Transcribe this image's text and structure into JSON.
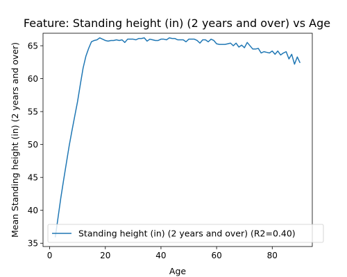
{
  "chart_data": {
    "type": "line",
    "title": "Feature: Standing height (in) (2 years and over) vs Age",
    "xlabel": "Age",
    "ylabel": "Mean Standing height (in) (2 years and over)",
    "xlim": [
      -2.4,
      94.4
    ],
    "ylim": [
      34.5,
      66.9
    ],
    "xticks": [
      0,
      20,
      40,
      60,
      80
    ],
    "yticks": [
      35,
      40,
      45,
      50,
      55,
      60,
      65
    ],
    "xtick_labels": [
      "0",
      "20",
      "40",
      "60",
      "80"
    ],
    "ytick_labels": [
      "35",
      "40",
      "45",
      "50",
      "55",
      "60",
      "65"
    ],
    "grid": false,
    "legend_position": "lower-left",
    "series": [
      {
        "name": "Standing height (in) (2 years and over) (R2=0.40)",
        "color": "#1f77b4",
        "x": [
          2,
          3,
          4,
          5,
          6,
          7,
          8,
          9,
          10,
          11,
          12,
          13,
          14,
          15,
          16,
          17,
          18,
          19,
          20,
          21,
          22,
          23,
          24,
          25,
          26,
          27,
          28,
          29,
          30,
          31,
          32,
          33,
          34,
          35,
          36,
          37,
          38,
          39,
          40,
          41,
          42,
          43,
          44,
          45,
          46,
          47,
          48,
          49,
          50,
          51,
          52,
          53,
          54,
          55,
          56,
          57,
          58,
          59,
          60,
          61,
          62,
          63,
          64,
          65,
          66,
          67,
          68,
          69,
          70,
          71,
          72,
          73,
          74,
          75,
          76,
          77,
          78,
          79,
          80,
          81,
          82,
          83,
          84,
          85,
          86,
          87,
          88,
          89,
          90
        ],
        "values": [
          35.9,
          38.9,
          41.9,
          44.6,
          47.2,
          49.8,
          52.1,
          54.3,
          56.5,
          59.1,
          61.6,
          63.4,
          64.6,
          65.6,
          65.8,
          65.9,
          66.2,
          66.0,
          65.8,
          65.7,
          65.8,
          65.8,
          65.9,
          65.8,
          65.9,
          65.5,
          66.0,
          66.0,
          66.0,
          65.9,
          66.1,
          66.1,
          66.2,
          65.7,
          66.0,
          65.9,
          65.8,
          65.8,
          66.0,
          66.0,
          65.9,
          66.2,
          66.1,
          66.1,
          65.9,
          65.9,
          65.9,
          65.6,
          66.0,
          66.0,
          66.0,
          65.8,
          65.4,
          65.9,
          65.9,
          65.6,
          66.0,
          65.8,
          65.3,
          65.2,
          65.2,
          65.2,
          65.3,
          65.4,
          65.0,
          65.4,
          64.8,
          65.1,
          64.7,
          65.5,
          65.0,
          64.5,
          64.5,
          64.6,
          63.9,
          64.1,
          64.0,
          63.9,
          64.2,
          63.7,
          64.2,
          63.6,
          63.9,
          64.1,
          63.0,
          63.7,
          62.2,
          63.3,
          62.4
        ]
      }
    ]
  }
}
